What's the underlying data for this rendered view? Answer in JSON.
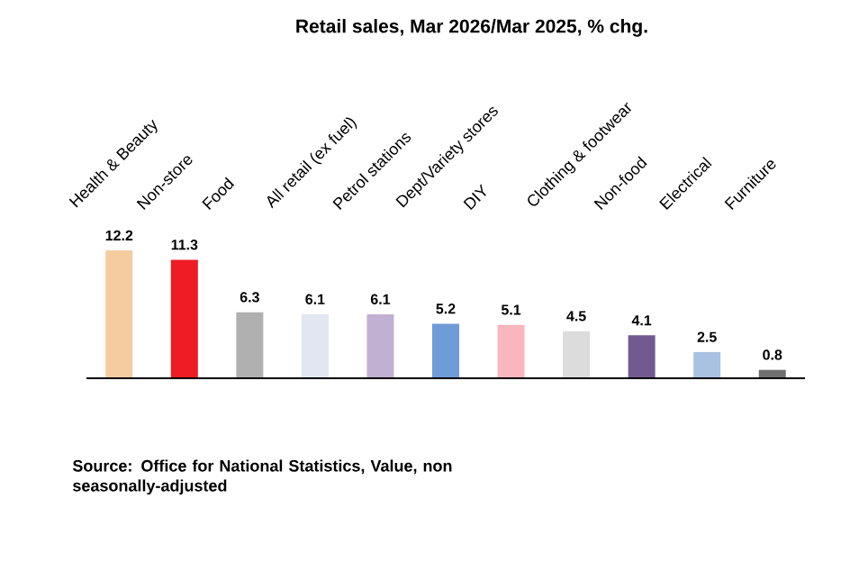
{
  "chart_data": {
    "type": "bar",
    "title": "Retail sales, Mar 2026/Mar 2025, % chg.",
    "categories": [
      "Health & Beauty",
      "Non-store",
      "Food",
      "All retail (ex fuel)",
      "Petrol stations",
      "Dept/Variety stores",
      "DIY",
      "Clothing & footwear",
      "Non-food",
      "Electrical",
      "Furniture"
    ],
    "values": [
      12.2,
      11.3,
      6.3,
      6.1,
      6.1,
      5.2,
      5.1,
      4.5,
      4.1,
      2.5,
      0.8
    ],
    "colors": [
      "#f5cba0",
      "#ee1c25",
      "#b0b0b0",
      "#e1e6f2",
      "#c1b0d2",
      "#6f9bd6",
      "#f9b6bd",
      "#dcdcdc",
      "#72598f",
      "#a9c1e2",
      "#707070"
    ],
    "data_labels": true,
    "tick_labels": "x",
    "annotations": [
      "Source: Office for National Statistics, Value, non seasonally-adjusted"
    ]
  }
}
